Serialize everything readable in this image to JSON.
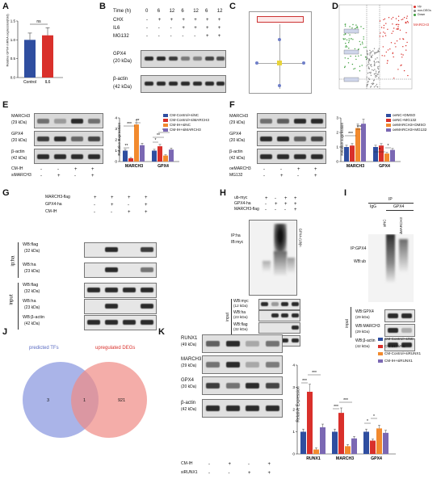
{
  "panels": [
    "A",
    "B",
    "C",
    "D",
    "E",
    "F",
    "G",
    "H",
    "I",
    "J",
    "K"
  ],
  "colors": {
    "blue": "#2f4ea0",
    "red": "#d9302b",
    "orange": "#f28a2e",
    "purple": "#7b68b3",
    "venn_left": "#8e9be0",
    "venn_right": "#ef8a84"
  },
  "A": {
    "ylabel": "Relative GPX4 mRNA expression(fold)",
    "ns": "ns",
    "yticks": [
      "0.0",
      "0.5",
      "1.0",
      "1.5"
    ],
    "chart_data": {
      "type": "bar",
      "categories": [
        "Control",
        "IL6"
      ],
      "values": [
        1.0,
        1.12
      ],
      "errors": [
        0.18,
        0.2
      ],
      "ylim": [
        0,
        1.5
      ],
      "ylabel": "Relative GPX4 mRNA expression(fold)"
    }
  },
  "B": {
    "time_label": "Time (h)",
    "times": [
      "0",
      "6",
      "12",
      "6",
      "12",
      "6",
      "12"
    ],
    "rows": [
      {
        "label": "CHX",
        "marks": [
          "-",
          "+",
          "+",
          "+",
          "+",
          "+",
          "+"
        ]
      },
      {
        "label": "IL6",
        "marks": [
          "-",
          "-",
          "-",
          "+",
          "+",
          "+",
          "+"
        ]
      },
      {
        "label": "MG132",
        "marks": [
          "-",
          "-",
          "-",
          "-",
          "-",
          "+",
          "+"
        ]
      }
    ],
    "blots": [
      {
        "name": "GPX4",
        "kda": "(20 kDa)"
      },
      {
        "name": "β-actin",
        "kda": "(42 kDa)"
      }
    ]
  },
  "D": {
    "legend": [
      "Up",
      "non-DEGs",
      "Down"
    ],
    "highlight": "MARCH3",
    "side_labels": [
      "",
      "",
      ""
    ]
  },
  "E": {
    "blots": [
      {
        "name": "MARCH3",
        "kda": "(29 kDa)"
      },
      {
        "name": "GPX4",
        "kda": "(20 kDa)"
      },
      {
        "name": "β-actin",
        "kda": "(42 kDa)"
      }
    ],
    "rows": [
      {
        "label": "CM-IH",
        "marks": [
          "-",
          "-",
          "+",
          "+"
        ]
      },
      {
        "label": "siMARCH3",
        "marks": [
          "-",
          "+",
          "-",
          "+"
        ]
      }
    ],
    "legend": [
      "CM-Control+siNC",
      "CM-Control+siMARCH3",
      "CM-IH+siNC",
      "CM-IH+siMARCH3"
    ],
    "ylabel": "Relative Expression",
    "yticks": [
      "0",
      "1",
      "2",
      "3",
      "4"
    ],
    "sig": [
      "**",
      "***",
      "**",
      "*",
      "**",
      "*",
      "**"
    ],
    "chart_data": {
      "type": "bar",
      "categories": [
        "MARCH3",
        "GPX4"
      ],
      "ylim": [
        0,
        4
      ],
      "ylabel": "Relative Expression",
      "series": [
        {
          "name": "CM-Control+siNC",
          "values": [
            1.0,
            1.0
          ]
        },
        {
          "name": "CM-Control+siMARCH3",
          "values": [
            0.3,
            1.4
          ]
        },
        {
          "name": "CM-IH+siNC",
          "values": [
            3.4,
            0.55
          ]
        },
        {
          "name": "CM-IH+siMARCH3",
          "values": [
            1.5,
            1.1
          ]
        }
      ]
    }
  },
  "F": {
    "blots": [
      {
        "name": "MARCH3",
        "kda": "(29 kDa)"
      },
      {
        "name": "GPX4",
        "kda": "(20 kDa)"
      },
      {
        "name": "β-actin",
        "kda": "(42 kDa)"
      }
    ],
    "rows": [
      {
        "label": "oeMARCH3",
        "marks": [
          "-",
          "-",
          "+",
          "+"
        ]
      },
      {
        "label": "MG132",
        "marks": [
          "-",
          "+",
          "-",
          "+"
        ]
      }
    ],
    "legend": [
      "oeNC+DMSO",
      "oeNC+MG132",
      "oeMARCH3+DMSO",
      "oeMARCH3+MG132"
    ],
    "ylabel": "Relative Expression",
    "yticks": [
      "0",
      "1",
      "2",
      "3"
    ],
    "sig": [
      "***",
      "*",
      "*"
    ],
    "chart_data": {
      "type": "bar",
      "categories": [
        "MARCH3",
        "GPX4"
      ],
      "ylim": [
        0,
        3
      ],
      "ylabel": "Relative Expression",
      "series": [
        {
          "name": "oeNC+DMSO",
          "values": [
            1.0,
            1.0
          ]
        },
        {
          "name": "oeNC+MG132",
          "values": [
            1.1,
            1.1
          ]
        },
        {
          "name": "oeMARCH3+DMSO",
          "values": [
            2.3,
            0.55
          ]
        },
        {
          "name": "oeMARCH3+MG132",
          "values": [
            2.6,
            0.8
          ]
        }
      ]
    }
  },
  "G": {
    "rows": [
      {
        "label": "MARCH3-flag",
        "marks": [
          "+",
          "+",
          "+",
          "+"
        ]
      },
      {
        "label": "GPX4-ha",
        "marks": [
          "-",
          "+",
          "-",
          "+"
        ]
      },
      {
        "label": "CM-IH",
        "marks": [
          "-",
          "-",
          "+",
          "+"
        ]
      }
    ],
    "side": [
      "ip:ha",
      "input"
    ],
    "blots": [
      {
        "name": "WB:flag",
        "kda": "(32 kDa)"
      },
      {
        "name": "WB:ha",
        "kda": "(23 kDa)"
      },
      {
        "name": "WB:flag",
        "kda": "(32 kDa)"
      },
      {
        "name": "WB:ha",
        "kda": "(23 kDa)"
      },
      {
        "name": "WB:β-actin",
        "kda": "(42 kDa)"
      }
    ]
  },
  "H": {
    "rows": [
      {
        "label": "ub-myc",
        "marks": [
          "+",
          "-",
          "+",
          "+"
        ]
      },
      {
        "label": "GPX4-ha",
        "marks": [
          "-",
          "+",
          "+",
          "+"
        ]
      },
      {
        "label": "MARCH3-flag",
        "marks": [
          "-",
          "-",
          "-",
          "+"
        ]
      }
    ],
    "ip": "IP:ha",
    "ib": "IB:myc",
    "side_top": "GPX4-(Ub)n",
    "side_input": "input",
    "blots": [
      {
        "name": "WB:myc",
        "kda": "(12 kDa)"
      },
      {
        "name": "WB:ha",
        "kda": "(23 kDa)"
      },
      {
        "name": "WB:flag",
        "kda": "(32 kDa)"
      },
      {
        "name": "WB:β-actin",
        "kda": "(42 kDa)"
      }
    ]
  },
  "I": {
    "ip": "IP",
    "ip_cols": [
      "IgG",
      "GPX4"
    ],
    "lanes": [
      "siNC",
      "siMARCH3"
    ],
    "ip_label": "IP:GPX4",
    "wb_label": "WB:ub",
    "input": "input",
    "blots": [
      {
        "name": "WB:GPX4",
        "kda": "(29 kDa)"
      },
      {
        "name": "WB:MARCH3",
        "kda": "(29 kDa)"
      },
      {
        "name": "WB:β-actin",
        "kda": "(42 kDa)"
      }
    ]
  },
  "J": {
    "left_title": "predicted TFs",
    "right_title": "upregulated DEGs",
    "left_only": "3",
    "overlap": "1",
    "right_only": "921"
  },
  "K": {
    "blots": [
      {
        "name": "RUNX1",
        "kda": "(49 kDa)"
      },
      {
        "name": "MARCH3",
        "kda": "(29 kDa)"
      },
      {
        "name": "GPX4",
        "kda": "(20 kDa)"
      },
      {
        "name": "β-actin",
        "kda": "(42 kDa)"
      }
    ],
    "rows": [
      {
        "label": "CM-IH",
        "marks": [
          "-",
          "+",
          "-",
          "+"
        ]
      },
      {
        "label": "siRUNX1",
        "marks": [
          "-",
          "-",
          "+",
          "+"
        ]
      }
    ],
    "legend": [
      "CM-Control+siNC",
      "CM-IH+siNC",
      "CM-Control+siRUNX1",
      "CM-IH+siRUNX1"
    ],
    "ylabel": "Relative Expression",
    "yticks": [
      "0",
      "1",
      "2",
      "3",
      "4"
    ],
    "sig": [
      "***",
      "***",
      "***",
      "***",
      "*",
      "*"
    ],
    "chart_data": {
      "type": "bar",
      "categories": [
        "RUNX1",
        "MARCH3",
        "GPX4"
      ],
      "ylim": [
        0,
        4
      ],
      "ylabel": "Relative Expression",
      "series": [
        {
          "name": "CM-Control+siNC",
          "values": [
            1.0,
            1.0,
            1.0
          ]
        },
        {
          "name": "CM-IH+siNC",
          "values": [
            2.8,
            1.85,
            0.6
          ]
        },
        {
          "name": "CM-Control+siRUNX1",
          "values": [
            0.2,
            0.35,
            1.15
          ]
        },
        {
          "name": "CM-IH+siRUNX1",
          "values": [
            1.2,
            0.7,
            0.95
          ]
        }
      ]
    }
  }
}
